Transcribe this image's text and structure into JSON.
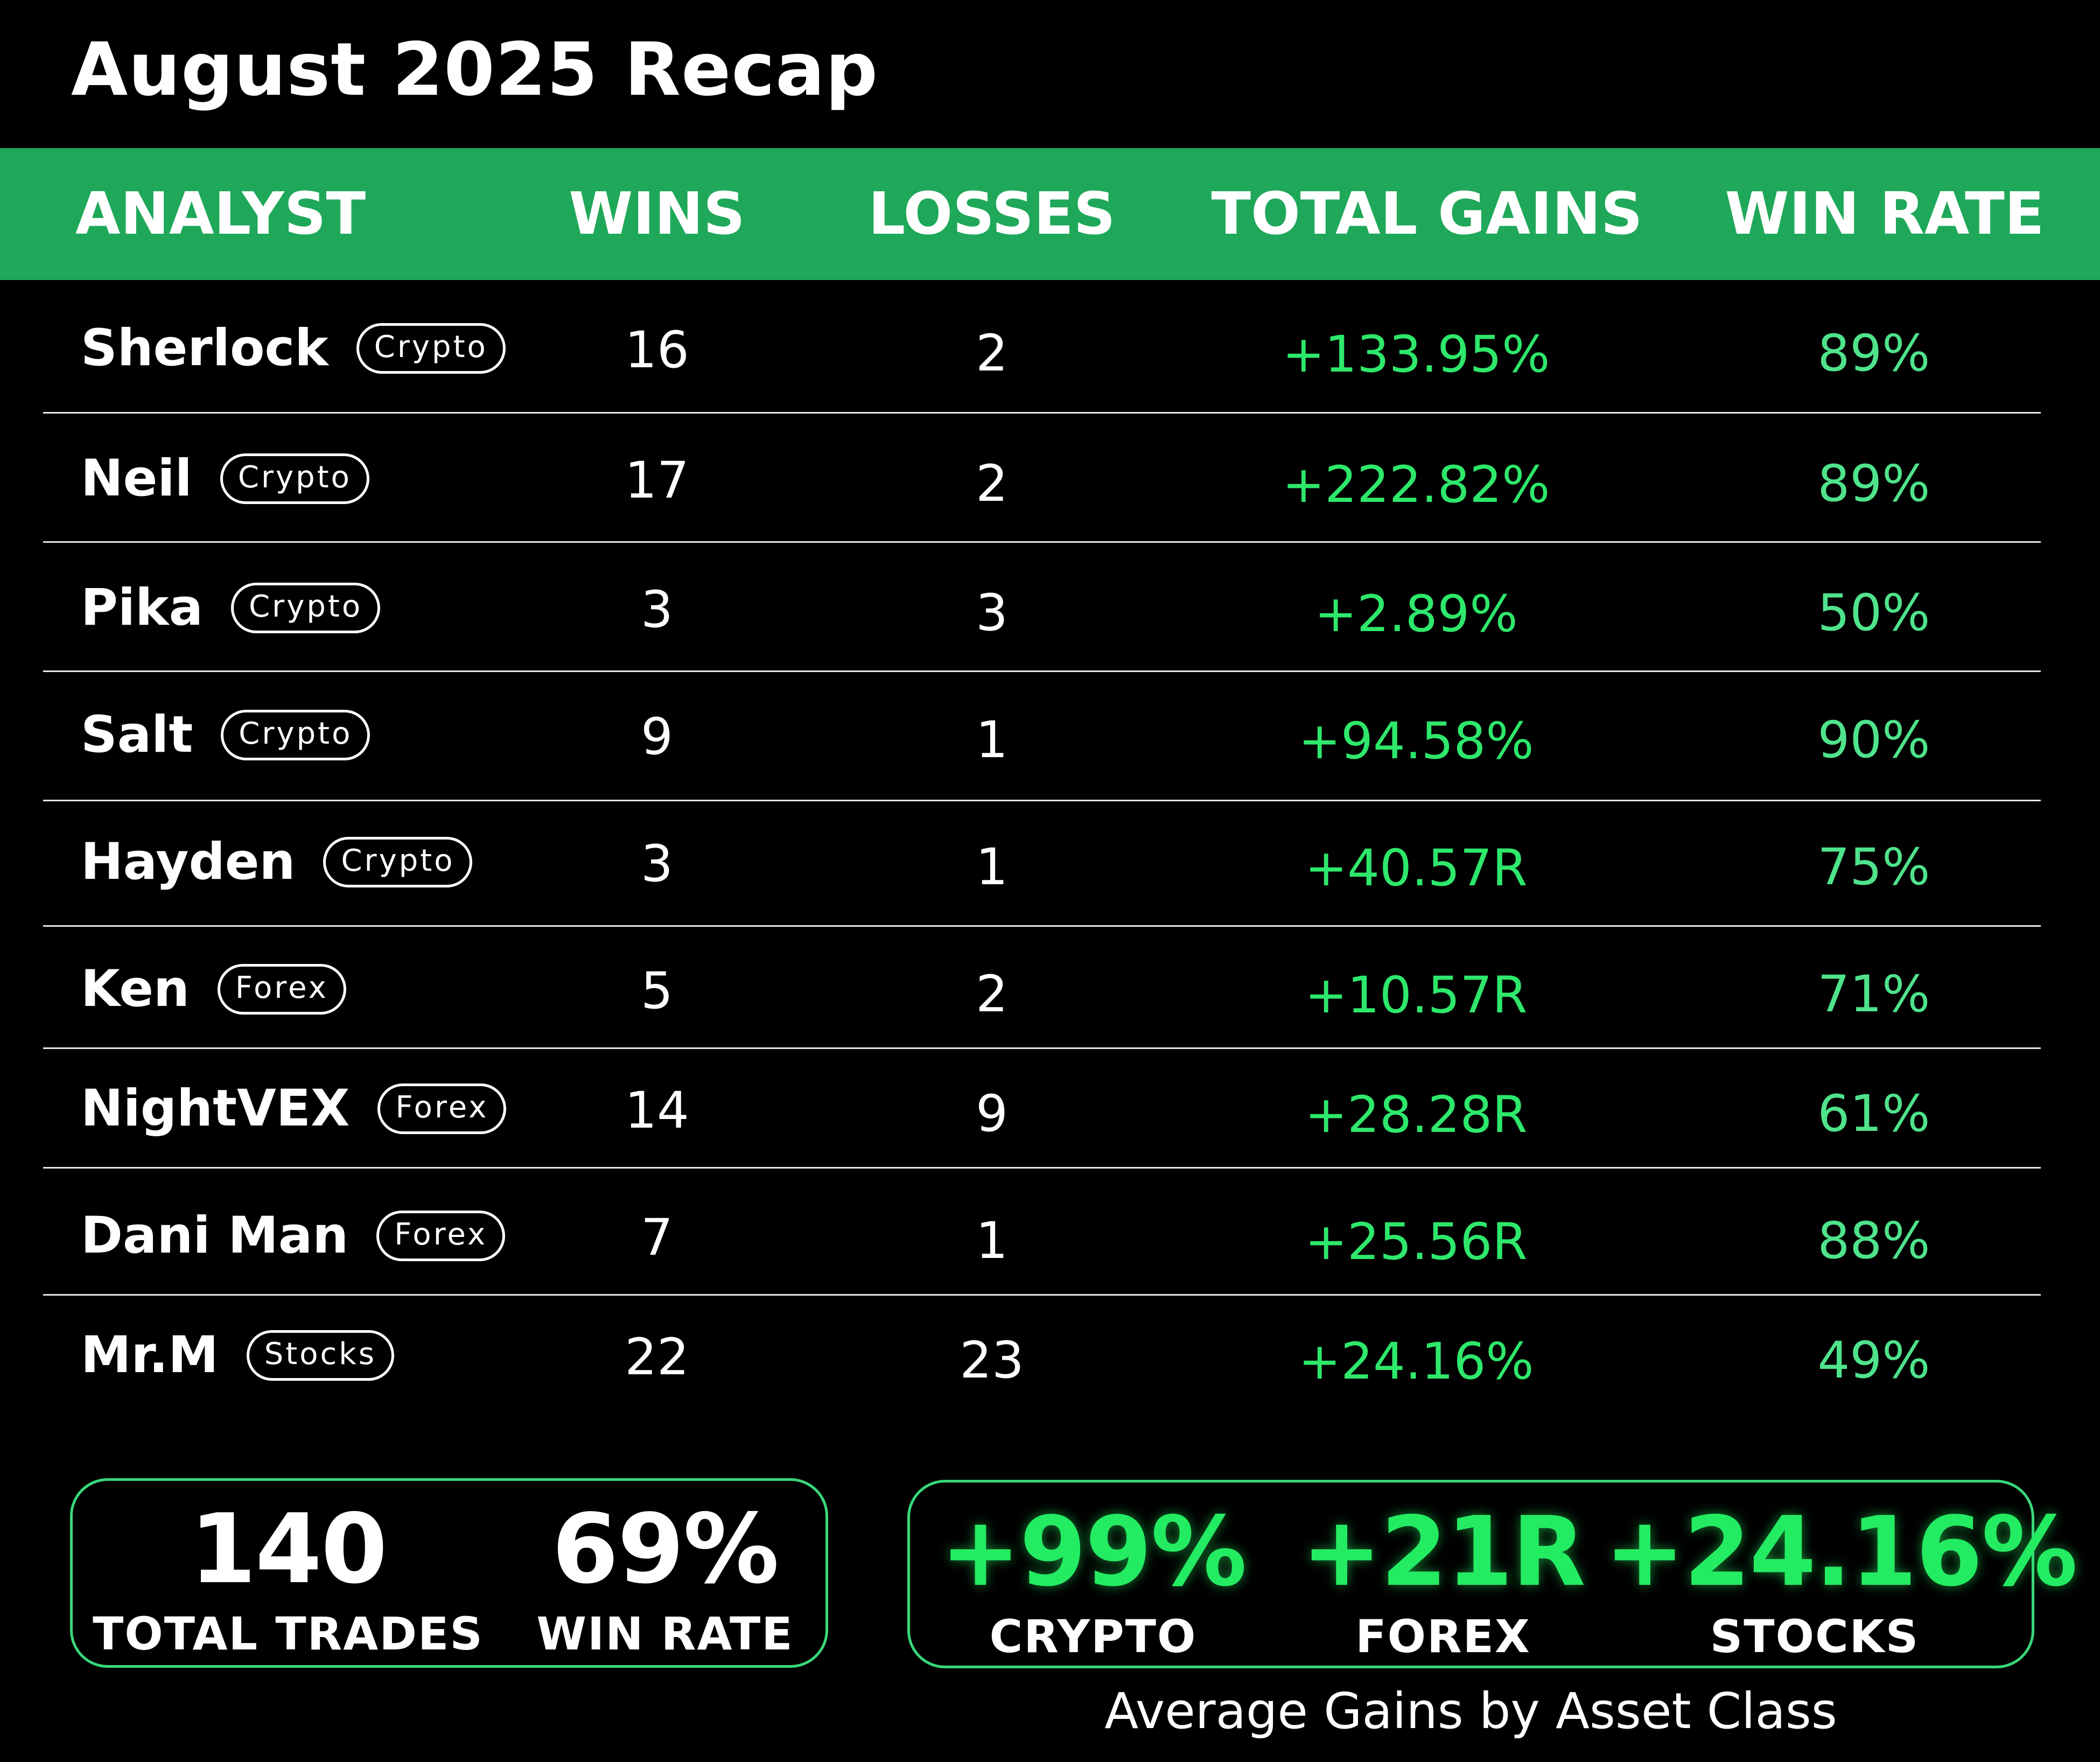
{
  "title": "August 2025 Recap",
  "header": {
    "analyst": "ANALYST",
    "wins": "WINS",
    "losses": "LOSSES",
    "total_gains": "TOTAL GAINS",
    "win_rate": "WIN RATE"
  },
  "rows": [
    {
      "name": "Sherlock",
      "asset": "Crypto",
      "wins": "16",
      "losses": "2",
      "gains": "+133.95%",
      "rate": "89%"
    },
    {
      "name": "Neil",
      "asset": "Crypto",
      "wins": "17",
      "losses": "2",
      "gains": "+222.82%",
      "rate": "89%"
    },
    {
      "name": "Pika",
      "asset": "Crypto",
      "wins": "3",
      "losses": "3",
      "gains": "+2.89%",
      "rate": "50%"
    },
    {
      "name": "Salt",
      "asset": "Crypto",
      "wins": "9",
      "losses": "1",
      "gains": "+94.58%",
      "rate": "90%"
    },
    {
      "name": "Hayden",
      "asset": "Crypto",
      "wins": "3",
      "losses": "1",
      "gains": "+40.57R",
      "rate": "75%"
    },
    {
      "name": "Ken",
      "asset": "Forex",
      "wins": "5",
      "losses": "2",
      "gains": "+10.57R",
      "rate": "71%"
    },
    {
      "name": "NightVEX",
      "asset": "Forex",
      "wins": "14",
      "losses": "9",
      "gains": "+28.28R",
      "rate": "61%"
    },
    {
      "name": "Dani Man",
      "asset": "Forex",
      "wins": "7",
      "losses": "1",
      "gains": "+25.56R",
      "rate": "88%"
    },
    {
      "name": "Mr.M",
      "asset": "Stocks",
      "wins": "22",
      "losses": "23",
      "gains": "+24.16%",
      "rate": "49%"
    }
  ],
  "summary": {
    "total_trades_value": "140",
    "total_trades_label": "TOTAL TRADES",
    "win_rate_value": "69%",
    "win_rate_label": "WIN RATE"
  },
  "averages": {
    "crypto_value": "+99%",
    "crypto_label": "CRYPTO",
    "forex_value": "+21R",
    "forex_label": "FOREX",
    "stocks_value": "+24.16%",
    "stocks_label": "STOCKS",
    "caption": "Average Gains by Asset Class"
  },
  "colors": {
    "header_bg": "#1fa85a",
    "gain_green": "#2ee86b",
    "rate_green": "#4fe38c",
    "box_border": "#39d77a"
  }
}
